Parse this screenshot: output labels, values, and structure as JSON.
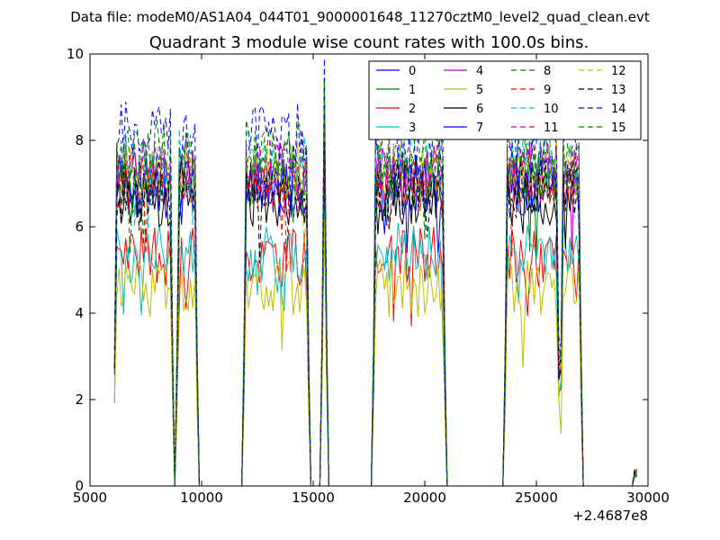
{
  "suptitle": "Data file: modeM0/AS1A04_044T01_9000001648_11270cztM0_level2_quad_clean.evt",
  "chart_data": {
    "type": "line",
    "title": "Quadrant 3 module wise count rates with 100.0s bins.",
    "xlabel": "",
    "ylabel": "",
    "xlim": [
      5000,
      30000
    ],
    "ylim": [
      0,
      10
    ],
    "x_offset_label": "+2.4687e8",
    "x_ticks": [
      5000,
      10000,
      15000,
      20000,
      25000,
      30000
    ],
    "x_tick_labels": [
      "5000",
      "10000",
      "15000",
      "20000",
      "25000",
      "30000"
    ],
    "y_ticks": [
      0,
      2,
      4,
      6,
      8,
      10
    ],
    "y_tick_labels": [
      "0",
      "2",
      "4",
      "6",
      "8",
      "10"
    ],
    "grid": false,
    "legend_placement": "top-right",
    "good_time_intervals": [
      [
        6100,
        8700
      ],
      [
        8900,
        9800
      ],
      [
        11900,
        14800
      ],
      [
        15400,
        15600
      ],
      [
        17700,
        20900
      ],
      [
        23600,
        26000
      ],
      [
        26100,
        27000
      ],
      [
        29400,
        29500
      ]
    ],
    "series": [
      {
        "name": "0",
        "color": "#0000ff",
        "dash": "solid",
        "base": 7.0
      },
      {
        "name": "1",
        "color": "#008000",
        "dash": "solid",
        "base": 7.0
      },
      {
        "name": "2",
        "color": "#ff0000",
        "dash": "solid",
        "base": 5.3
      },
      {
        "name": "3",
        "color": "#00bfbf",
        "dash": "solid",
        "base": 5.4
      },
      {
        "name": "4",
        "color": "#bf00bf",
        "dash": "solid",
        "base": 7.3
      },
      {
        "name": "5",
        "color": "#bfbf00",
        "dash": "solid",
        "base": 4.6
      },
      {
        "name": "6",
        "color": "#000000",
        "dash": "solid",
        "base": 6.7
      },
      {
        "name": "7",
        "color": "#0000ff",
        "dash": "solid",
        "base": 6.9
      },
      {
        "name": "8",
        "color": "#008000",
        "dash": "dashed",
        "base": 7.2
      },
      {
        "name": "9",
        "color": "#ff0000",
        "dash": "dashed",
        "base": 7.0
      },
      {
        "name": "10",
        "color": "#00bfbf",
        "dash": "dashed",
        "base": 7.6
      },
      {
        "name": "11",
        "color": "#bf00bf",
        "dash": "dashed",
        "base": 7.4
      },
      {
        "name": "12",
        "color": "#bfbf00",
        "dash": "dashed",
        "base": 7.3
      },
      {
        "name": "13",
        "color": "#000000",
        "dash": "dashed",
        "base": 6.9
      },
      {
        "name": "14",
        "color": "#0000ff",
        "dash": "dashed",
        "base": 8.2
      },
      {
        "name": "15",
        "color": "#008000",
        "dash": "dashed",
        "base": 7.8
      }
    ]
  }
}
